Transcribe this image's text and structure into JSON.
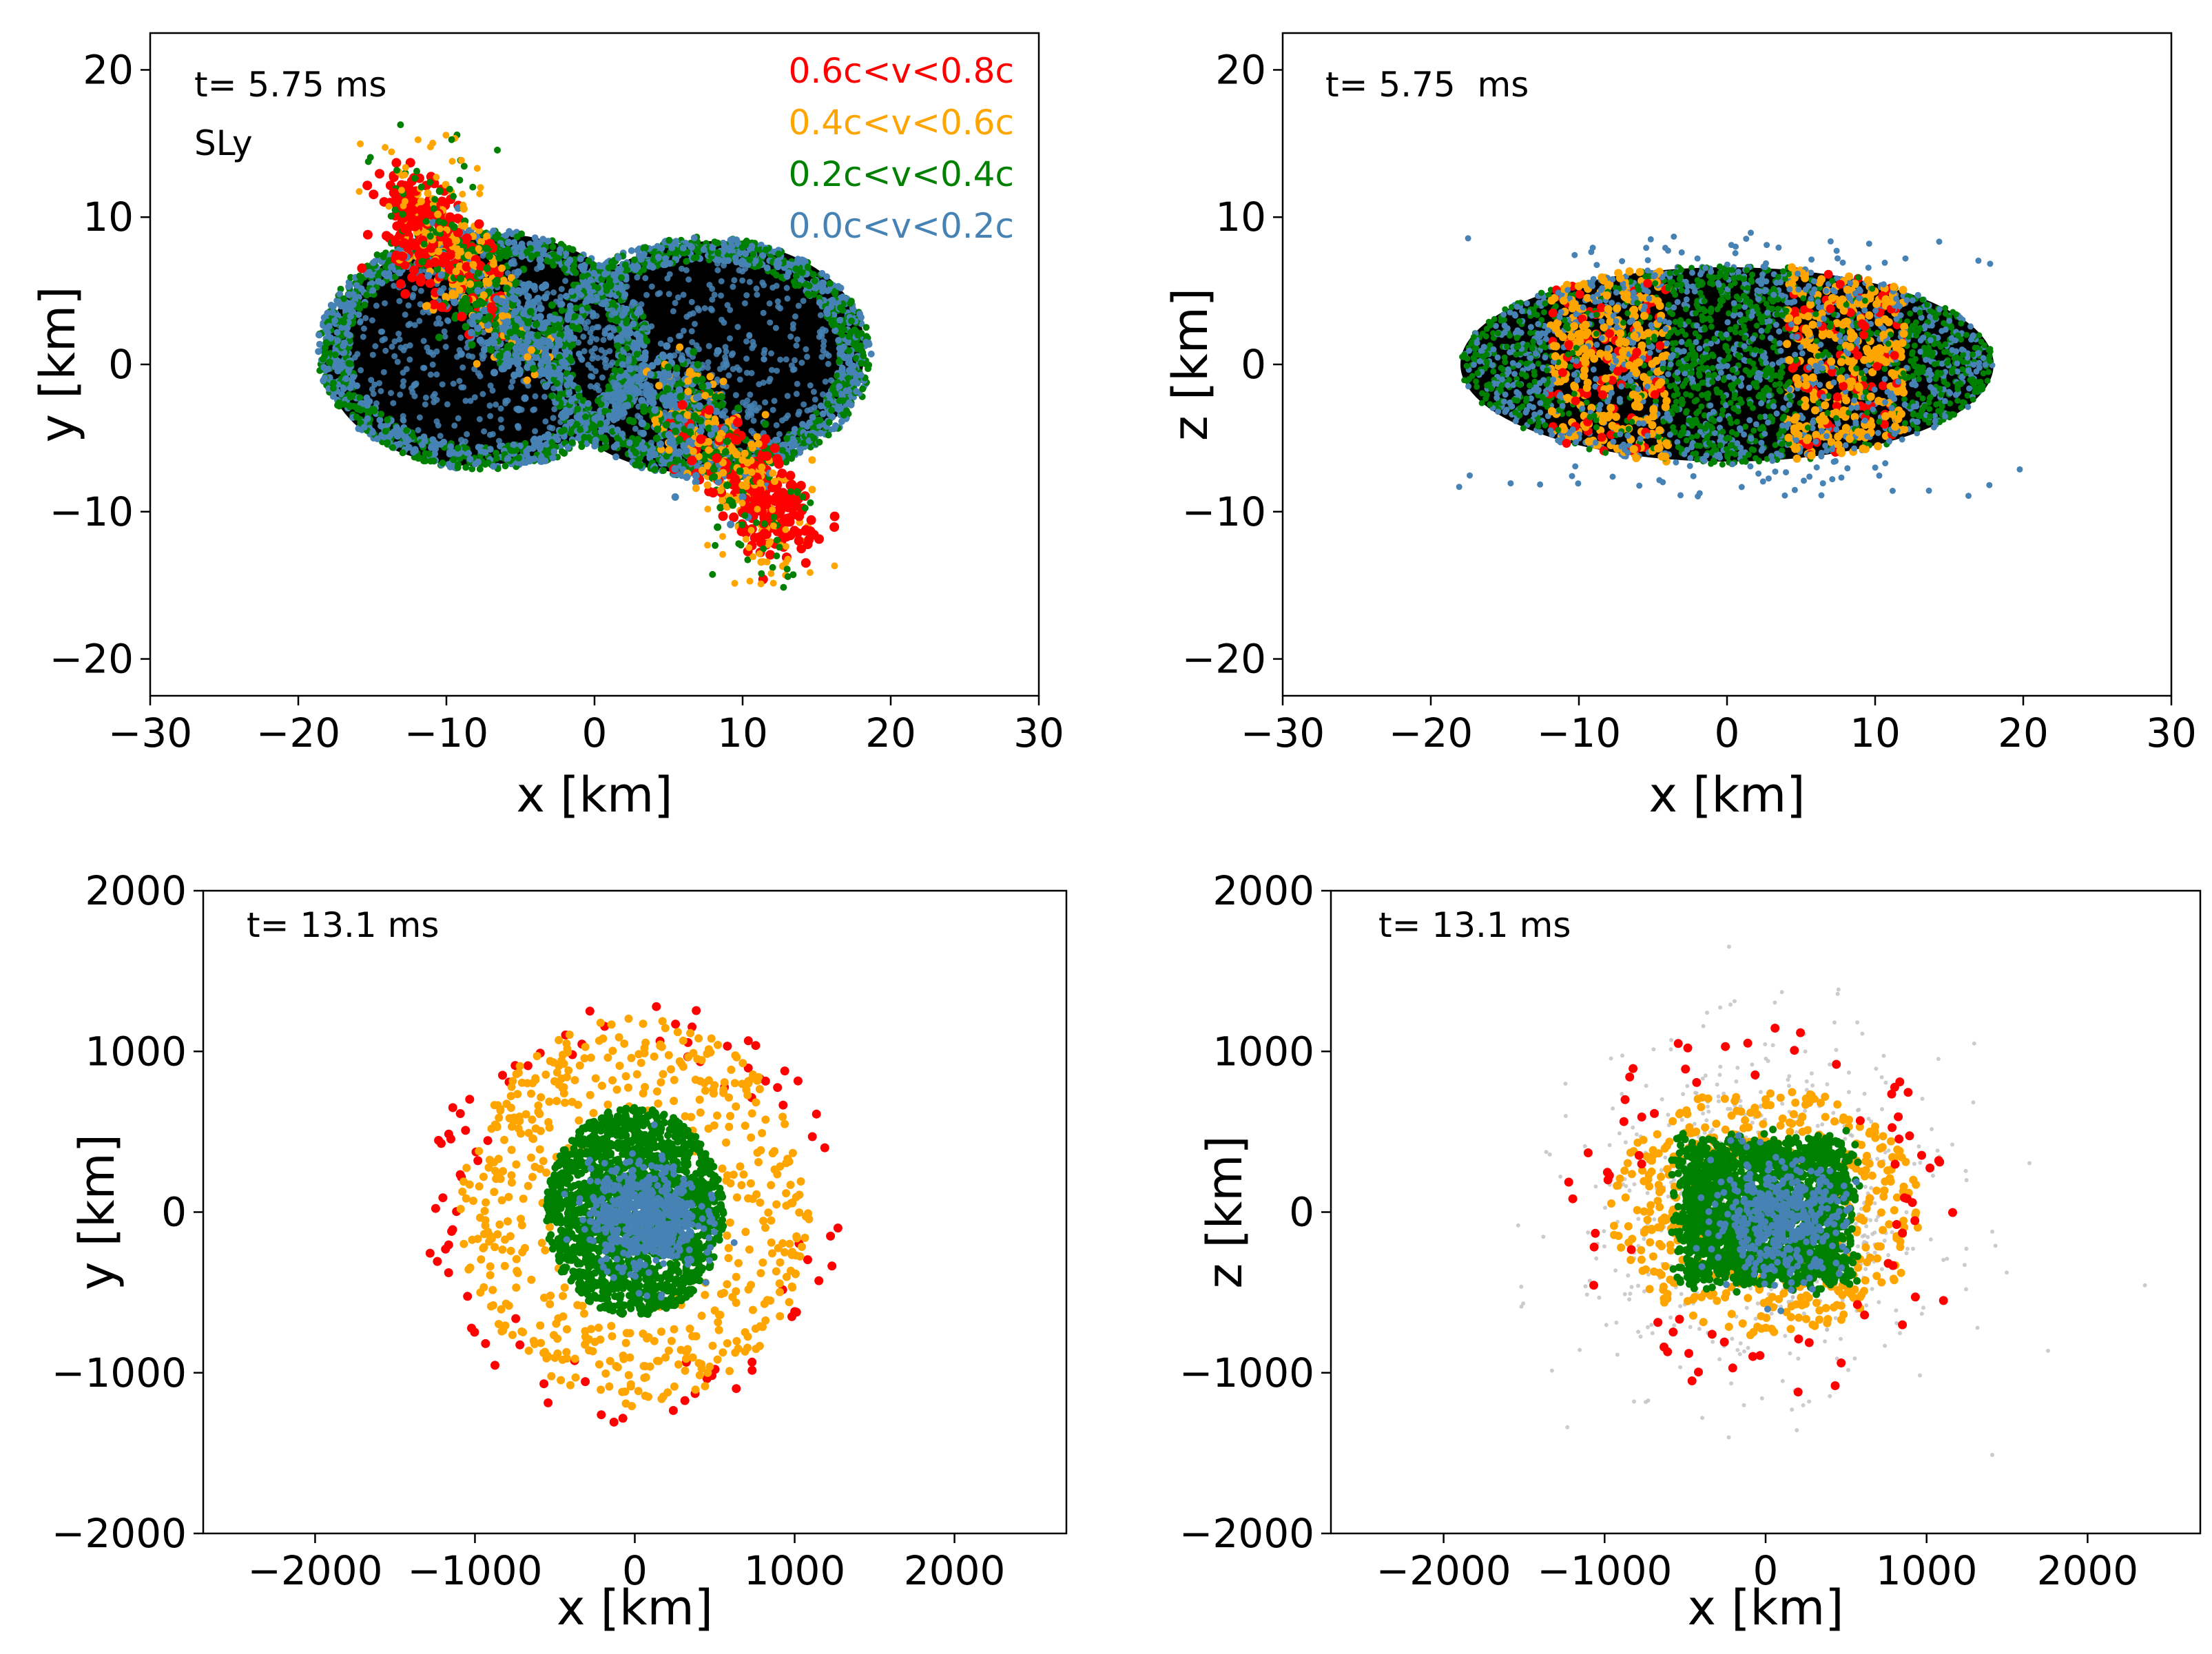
{
  "chart_data": [
    {
      "type": "scatter",
      "panel": "top-left",
      "xlabel": "x [km]",
      "ylabel": "y [km]",
      "xlim": [
        -30,
        30
      ],
      "ylim": [
        -22.5,
        22.5
      ],
      "xticks": [
        -30,
        -20,
        -10,
        0,
        10,
        20,
        30
      ],
      "xtick_labels": [
        "−30",
        "−20",
        "−10",
        "0",
        "10",
        "20",
        "30"
      ],
      "yticks": [
        -20,
        -10,
        0,
        10,
        20
      ],
      "ytick_labels": [
        "−20",
        "−10",
        "0",
        "10",
        "20"
      ],
      "annotations": [
        "t= 5.75 ms",
        "SLy"
      ],
      "legend_position": "top-right",
      "legend": [
        {
          "label": "0.6c<v<0.8c",
          "color": "#ff0000"
        },
        {
          "label": "0.4c<v<0.6c",
          "color": "#ffa500"
        },
        {
          "label": "0.2c<v<0.4c",
          "color": "#008000"
        },
        {
          "label": "0.0c<v<0.2c",
          "color": "#4682b4"
        }
      ],
      "structure": "two overlapping elliptical stars (centers about x=-7,y=1 and x=7,y=0, semi-axes ~11 x 8 km) with a diagonal tidal tail from (-11,10) to (13,-13)"
    },
    {
      "type": "scatter",
      "panel": "top-right",
      "xlabel": "x [km]",
      "ylabel": "z [km]",
      "xlim": [
        -30,
        30
      ],
      "ylim": [
        -22.5,
        22.5
      ],
      "xticks": [
        -30,
        -20,
        -10,
        0,
        10,
        20,
        30
      ],
      "xtick_labels": [
        "−30",
        "−20",
        "−10",
        "0",
        "10",
        "20",
        "30"
      ],
      "yticks": [
        -20,
        -10,
        0,
        10,
        20
      ],
      "ytick_labels": [
        "−20",
        "−10",
        "0",
        "10",
        "20"
      ],
      "annotations": [
        "t= 5.75  ms"
      ],
      "structure": "single flattened ellipse centered at origin, semi-axes ~18 x 7 km, fast ejecta concentrated near x=±8 km"
    },
    {
      "type": "scatter",
      "panel": "bottom-left",
      "xlabel": "x [km]",
      "ylabel": "y [km]",
      "xlim": [
        -2700,
        2700
      ],
      "ylim": [
        -2000,
        2000
      ],
      "xticks": [
        -2000,
        -1000,
        0,
        1000,
        2000
      ],
      "xtick_labels": [
        "−2000",
        "−1000",
        "0",
        "1000",
        "2000"
      ],
      "yticks": [
        -2000,
        -1000,
        0,
        1000,
        2000
      ],
      "ytick_labels": [
        "−2000",
        "−1000",
        "0",
        "1000",
        "2000"
      ],
      "annotations": [
        "t= 13.1 ms"
      ],
      "structure": "nested shells: 0.0c-0.2c core r~300 km, 0.2c-0.4c r~550 km, 0.4c-0.6c r~1000 km, 0.6c-0.8c r~1200 km"
    },
    {
      "type": "scatter",
      "panel": "bottom-right",
      "xlabel": "x [km]",
      "ylabel": "z [km]",
      "xlim": [
        -2700,
        2700
      ],
      "ylim": [
        -2000,
        2000
      ],
      "xticks": [
        -2000,
        -1000,
        0,
        1000,
        2000
      ],
      "xtick_labels": [
        "−2000",
        "−1000",
        "0",
        "1000",
        "2000"
      ],
      "yticks": [
        -2000,
        -1000,
        0,
        1000,
        2000
      ],
      "ytick_labels": [
        "−2000",
        "−1000",
        "0",
        "1000",
        "2000"
      ],
      "annotations": [
        "t= 13.1 ms"
      ],
      "structure": "box-like core |x|<500 km, |z|<400 km with faster ejecta outside, out to ~1250 km"
    }
  ]
}
